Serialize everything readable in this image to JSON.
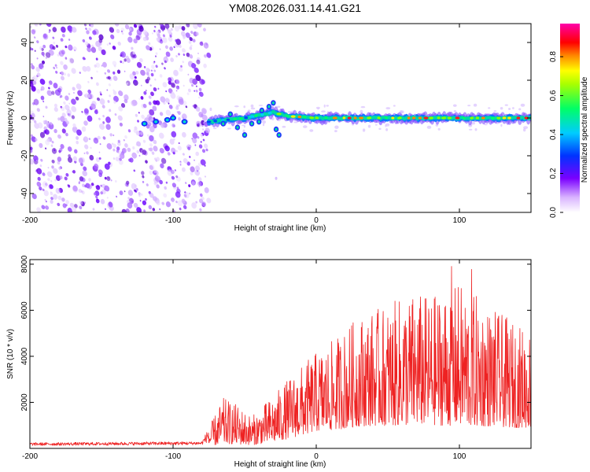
{
  "title": "YM08.2026.031.14.41.G21",
  "chart_data": [
    {
      "type": "heatmap",
      "xlabel": "Height of straight line (km)",
      "ylabel": "Frequency (Hz)",
      "xlim": [
        -200,
        150
      ],
      "ylim": [
        -50,
        50
      ],
      "xticks": [
        -200,
        -100,
        0,
        100
      ],
      "yticks": [
        -40,
        -20,
        0,
        20,
        40
      ],
      "noise_region_x": [
        -200,
        -75
      ],
      "signal_trace": {
        "description_x": [
          -120,
          -75,
          -50,
          -30,
          -20,
          0,
          50,
          100,
          150
        ],
        "frequency_hz": [
          -3,
          -2,
          0,
          3,
          1,
          0,
          0,
          0,
          0
        ],
        "peak_amplitude": [
          0.3,
          0.5,
          0.6,
          0.7,
          0.9,
          0.95,
          0.95,
          0.95,
          0.95
        ]
      },
      "colorbar": {
        "label": "Normalized spectral amplitude",
        "range": [
          0.0,
          0.97
        ],
        "ticks": [
          "0.0",
          "0.2",
          "0.4",
          "0.6",
          "0.8"
        ],
        "colormap": [
          "#ffffff",
          "#7a00ff",
          "#0033ff",
          "#00ccff",
          "#00ff66",
          "#ffff00",
          "#ff8800",
          "#ff0000",
          "#ff00aa"
        ]
      }
    },
    {
      "type": "line",
      "xlabel": "Height of straight line (km)",
      "ylabel": "SNR (10 * v/v)",
      "xlim": [
        -200,
        150
      ],
      "ylim": [
        0,
        8200
      ],
      "xticks": [
        -200,
        -100,
        0,
        100
      ],
      "yticks": [
        2000,
        4000,
        6000,
        8000
      ],
      "color": "#ee2222",
      "envelope": {
        "x": [
          -200,
          -80,
          -75,
          -65,
          -55,
          -45,
          -30,
          -20,
          -10,
          0,
          10,
          20,
          30,
          40,
          50,
          60,
          70,
          80,
          90,
          100,
          110,
          120,
          130,
          140,
          150
        ],
        "base": [
          120,
          150,
          300,
          700,
          600,
          500,
          900,
          1400,
          1900,
          2500,
          2600,
          2900,
          3200,
          3300,
          3300,
          3300,
          3400,
          3400,
          3300,
          3300,
          3200,
          3200,
          3100,
          3000,
          3000
        ],
        "peak": [
          250,
          300,
          900,
          2200,
          1900,
          1400,
          2300,
          3000,
          3600,
          4200,
          4600,
          5200,
          5800,
          6000,
          6200,
          6600,
          6800,
          6600,
          7000,
          7200,
          6800,
          6200,
          5800,
          5400,
          5200
        ]
      },
      "max_value": 8100
    }
  ]
}
